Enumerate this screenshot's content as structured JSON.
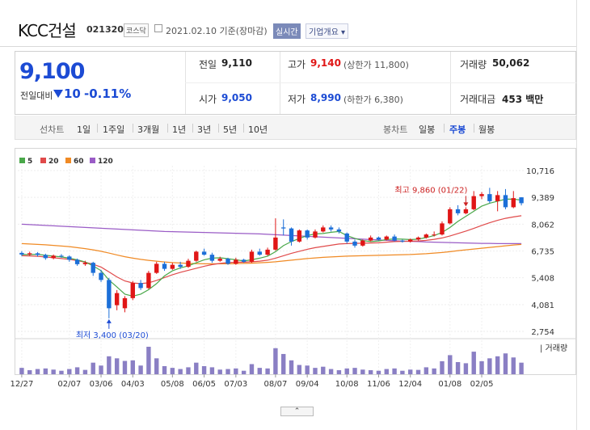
{
  "header": {
    "company": "KCC건설",
    "code": "021320",
    "market": "코스닥",
    "date": "2021.02.10 기준(장마감)",
    "realtime": "실시간",
    "overview": "기업개요 ▾"
  },
  "quote": {
    "price": "9,100",
    "prev_label": "전일대비",
    "change": "10",
    "change_pct": "-0.11%",
    "prev_close_label": "전일",
    "prev_close": "9,110",
    "high_label": "고가",
    "high": "9,140",
    "upper_limit": "(상한가 11,800)",
    "volume_label": "거래량",
    "volume": "50,062",
    "open_label": "시가",
    "open": "9,050",
    "low_label": "저가",
    "low": "8,990",
    "lower_limit": "(하한가 6,380)",
    "amount_label": "거래대금",
    "amount": "453 백만"
  },
  "tabs": {
    "line_label": "선차트",
    "line_periods": [
      "1일",
      "1주일",
      "3개월",
      "1년",
      "3년",
      "5년",
      "10년"
    ],
    "candle_label": "봉차트",
    "candle_periods": [
      "일봉",
      "주봉",
      "월봉"
    ],
    "selected": "주봉"
  },
  "colors": {
    "up": "#e01616",
    "down": "#1c6fd8",
    "ma5": "#4aa84a",
    "ma20": "#e04a4a",
    "ma60": "#f08a24",
    "ma120": "#9a5cc6"
  },
  "chart_data": {
    "type": "candlestick",
    "legend": [
      "5",
      "20",
      "60",
      "120"
    ],
    "y_ticks": [
      "10,716",
      "9,389",
      "8,062",
      "6,735",
      "5,408",
      "4,081",
      "2,754"
    ],
    "y_range": [
      2754,
      10716
    ],
    "x_labels": [
      "12/27",
      "02/07",
      "03/06",
      "04/03",
      "05/08",
      "06/05",
      "07/03",
      "08/07",
      "09/04",
      "10/08",
      "11/06",
      "12/04",
      "01/08",
      "02/05"
    ],
    "x_label_index": [
      0,
      6,
      10,
      14,
      19,
      23,
      27,
      32,
      36,
      41,
      45,
      49,
      54,
      58
    ],
    "annotation_high": "최고 9,860 (01/22)",
    "annotation_high_index": 56,
    "annotation_low": "최저 3,400 (03/20)",
    "annotation_low_index": 11,
    "volume_label": "거래량",
    "candles": [
      {
        "o": 6640,
        "c": 6560,
        "h": 6720,
        "l": 6480,
        "v": 22
      },
      {
        "o": 6560,
        "c": 6620,
        "h": 6700,
        "l": 6500,
        "v": 14
      },
      {
        "o": 6620,
        "c": 6540,
        "h": 6680,
        "l": 6460,
        "v": 18
      },
      {
        "o": 6540,
        "c": 6380,
        "h": 6600,
        "l": 6300,
        "v": 20
      },
      {
        "o": 6380,
        "c": 6500,
        "h": 6560,
        "l": 6320,
        "v": 16
      },
      {
        "o": 6500,
        "c": 6460,
        "h": 6580,
        "l": 6400,
        "v": 12
      },
      {
        "o": 6460,
        "c": 6300,
        "h": 6520,
        "l": 6200,
        "v": 18
      },
      {
        "o": 6300,
        "c": 6080,
        "h": 6360,
        "l": 6000,
        "v": 24
      },
      {
        "o": 6080,
        "c": 6150,
        "h": 6250,
        "l": 6000,
        "v": 15
      },
      {
        "o": 6150,
        "c": 5650,
        "h": 6200,
        "l": 5500,
        "v": 40
      },
      {
        "o": 5650,
        "c": 5300,
        "h": 5800,
        "l": 5200,
        "v": 30
      },
      {
        "o": 5300,
        "c": 3900,
        "h": 5400,
        "l": 3400,
        "v": 62
      },
      {
        "o": 4050,
        "c": 4650,
        "h": 4800,
        "l": 3800,
        "v": 55
      },
      {
        "o": 3900,
        "c": 4400,
        "h": 4500,
        "l": 3700,
        "v": 46
      },
      {
        "o": 4400,
        "c": 5150,
        "h": 5250,
        "l": 4300,
        "v": 48
      },
      {
        "o": 5150,
        "c": 4900,
        "h": 5300,
        "l": 4800,
        "v": 30
      },
      {
        "o": 4900,
        "c": 5650,
        "h": 5750,
        "l": 4850,
        "v": 95
      },
      {
        "o": 5650,
        "c": 6100,
        "h": 6200,
        "l": 5600,
        "v": 55
      },
      {
        "o": 6100,
        "c": 5850,
        "h": 6200,
        "l": 5750,
        "v": 28
      },
      {
        "o": 5850,
        "c": 6050,
        "h": 6150,
        "l": 5800,
        "v": 22
      },
      {
        "o": 6050,
        "c": 5950,
        "h": 6200,
        "l": 5850,
        "v": 18
      },
      {
        "o": 5950,
        "c": 6250,
        "h": 6350,
        "l": 5900,
        "v": 24
      },
      {
        "o": 6250,
        "c": 6700,
        "h": 6750,
        "l": 6200,
        "v": 40
      },
      {
        "o": 6700,
        "c": 6550,
        "h": 6850,
        "l": 6500,
        "v": 28
      },
      {
        "o": 6550,
        "c": 6250,
        "h": 6650,
        "l": 6150,
        "v": 24
      },
      {
        "o": 6250,
        "c": 6350,
        "h": 6450,
        "l": 6200,
        "v": 16
      },
      {
        "o": 6350,
        "c": 6100,
        "h": 6400,
        "l": 6050,
        "v": 18
      },
      {
        "o": 6100,
        "c": 6300,
        "h": 6400,
        "l": 6050,
        "v": 20
      },
      {
        "o": 6300,
        "c": 6200,
        "h": 6350,
        "l": 6150,
        "v": 12
      },
      {
        "o": 6200,
        "c": 6700,
        "h": 6800,
        "l": 6150,
        "v": 35
      },
      {
        "o": 6700,
        "c": 6550,
        "h": 6850,
        "l": 6500,
        "v": 22
      },
      {
        "o": 6550,
        "c": 6800,
        "h": 6900,
        "l": 6500,
        "v": 20
      },
      {
        "o": 6800,
        "c": 7400,
        "h": 8350,
        "l": 6750,
        "v": 90
      },
      {
        "o": 7900,
        "c": 7850,
        "h": 8300,
        "l": 7500,
        "v": 70
      },
      {
        "o": 7850,
        "c": 7200,
        "h": 7900,
        "l": 7000,
        "v": 48
      },
      {
        "o": 7200,
        "c": 7750,
        "h": 7800,
        "l": 7150,
        "v": 32
      },
      {
        "o": 7750,
        "c": 7400,
        "h": 7800,
        "l": 7300,
        "v": 30
      },
      {
        "o": 7400,
        "c": 7700,
        "h": 7800,
        "l": 7350,
        "v": 22
      },
      {
        "o": 7700,
        "c": 7900,
        "h": 8000,
        "l": 7650,
        "v": 26
      },
      {
        "o": 7900,
        "c": 7800,
        "h": 8000,
        "l": 7700,
        "v": 18
      },
      {
        "o": 7800,
        "c": 7700,
        "h": 7900,
        "l": 7600,
        "v": 14
      },
      {
        "o": 7600,
        "c": 7200,
        "h": 7650,
        "l": 7100,
        "v": 20
      },
      {
        "o": 7200,
        "c": 7000,
        "h": 7300,
        "l": 6900,
        "v": 22
      },
      {
        "o": 7000,
        "c": 7250,
        "h": 7300,
        "l": 6950,
        "v": 16
      },
      {
        "o": 7250,
        "c": 7400,
        "h": 7500,
        "l": 7200,
        "v": 14
      },
      {
        "o": 7400,
        "c": 7300,
        "h": 7450,
        "l": 7250,
        "v": 12
      },
      {
        "o": 7300,
        "c": 7450,
        "h": 7500,
        "l": 7250,
        "v": 18
      },
      {
        "o": 7450,
        "c": 7250,
        "h": 7550,
        "l": 7200,
        "v": 20
      },
      {
        "o": 7250,
        "c": 7200,
        "h": 7300,
        "l": 7150,
        "v": 12
      },
      {
        "o": 7200,
        "c": 7300,
        "h": 7350,
        "l": 7150,
        "v": 16
      },
      {
        "o": 7300,
        "c": 7400,
        "h": 7450,
        "l": 7250,
        "v": 15
      },
      {
        "o": 7400,
        "c": 7550,
        "h": 7600,
        "l": 7350,
        "v": 24
      },
      {
        "o": 7550,
        "c": 7550,
        "h": 7700,
        "l": 7450,
        "v": 20
      },
      {
        "o": 7550,
        "c": 8100,
        "h": 8200,
        "l": 7500,
        "v": 45
      },
      {
        "o": 8100,
        "c": 8800,
        "h": 8900,
        "l": 8050,
        "v": 66
      },
      {
        "o": 8800,
        "c": 8600,
        "h": 9000,
        "l": 8500,
        "v": 42
      },
      {
        "o": 8600,
        "c": 8800,
        "h": 8900,
        "l": 8550,
        "v": 38
      },
      {
        "o": 8800,
        "c": 9450,
        "h": 9700,
        "l": 8750,
        "v": 78
      },
      {
        "o": 9450,
        "c": 9550,
        "h": 9650,
        "l": 9300,
        "v": 45
      },
      {
        "o": 9550,
        "c": 9200,
        "h": 9860,
        "l": 9100,
        "v": 55
      },
      {
        "o": 9200,
        "c": 9500,
        "h": 9700,
        "l": 8700,
        "v": 62
      },
      {
        "o": 9500,
        "c": 8900,
        "h": 9800,
        "l": 8800,
        "v": 72
      },
      {
        "o": 8900,
        "c": 9350,
        "h": 9700,
        "l": 8850,
        "v": 58
      },
      {
        "o": 9390,
        "c": 9100,
        "h": 9400,
        "l": 8990,
        "v": 40
      }
    ],
    "ma5": [
      6560,
      6560,
      6570,
      6520,
      6480,
      6440,
      6380,
      6300,
      6190,
      6000,
      5760,
      5300,
      4950,
      4600,
      4500,
      4600,
      4820,
      5120,
      5500,
      5750,
      5900,
      6000,
      6150,
      6300,
      6380,
      6400,
      6350,
      6300,
      6240,
      6300,
      6380,
      6480,
      6700,
      7000,
      7200,
      7350,
      7500,
      7580,
      7600,
      7660,
      7700,
      7500,
      7360,
      7250,
      7200,
      7230,
      7300,
      7330,
      7320,
      7300,
      7320,
      7400,
      7500,
      7650,
      7900,
      8200,
      8450,
      8700,
      8950,
      9100,
      9200,
      9300,
      9300,
      9250
    ],
    "ma20": [
      6500,
      6490,
      6470,
      6440,
      6400,
      6360,
      6320,
      6260,
      6180,
      6080,
      5940,
      5700,
      5450,
      5250,
      5150,
      5120,
      5160,
      5280,
      5420,
      5560,
      5680,
      5780,
      5880,
      5980,
      6060,
      6120,
      6160,
      6180,
      6180,
      6200,
      6230,
      6280,
      6380,
      6500,
      6620,
      6720,
      6820,
      6900,
      6960,
      7020,
      7080,
      7100,
      7110,
      7120,
      7130,
      7140,
      7170,
      7200,
      7210,
      7220,
      7230,
      7260,
      7310,
      7380,
      7480,
      7600,
      7720,
      7850,
      8000,
      8130,
      8250,
      8350,
      8420,
      8480
    ],
    "ma60": [
      7100,
      7080,
      7060,
      7040,
      7010,
      6980,
      6950,
      6900,
      6850,
      6790,
      6720,
      6630,
      6540,
      6450,
      6380,
      6320,
      6270,
      6230,
      6190,
      6160,
      6140,
      6120,
      6110,
      6100,
      6100,
      6100,
      6100,
      6110,
      6120,
      6130,
      6150,
      6170,
      6200,
      6240,
      6280,
      6320,
      6360,
      6390,
      6420,
      6440,
      6460,
      6480,
      6490,
      6500,
      6510,
      6520,
      6530,
      6540,
      6550,
      6560,
      6580,
      6600,
      6630,
      6660,
      6700,
      6750,
      6790,
      6830,
      6870,
      6910,
      6950,
      6990,
      7030,
      7060
    ],
    "ma120": [
      8060,
      8040,
      8020,
      8000,
      7980,
      7960,
      7940,
      7920,
      7900,
      7880,
      7860,
      7840,
      7820,
      7800,
      7780,
      7760,
      7740,
      7720,
      7700,
      7690,
      7680,
      7670,
      7660,
      7650,
      7640,
      7630,
      7620,
      7610,
      7600,
      7590,
      7580,
      7560,
      7540,
      7520,
      7500,
      7480,
      7460,
      7440,
      7420,
      7400,
      7380,
      7360,
      7340,
      7320,
      7300,
      7280,
      7260,
      7240,
      7220,
      7210,
      7200,
      7180,
      7170,
      7160,
      7150,
      7140,
      7130,
      7120,
      7110,
      7110,
      7100,
      7100,
      7100,
      7100
    ]
  }
}
